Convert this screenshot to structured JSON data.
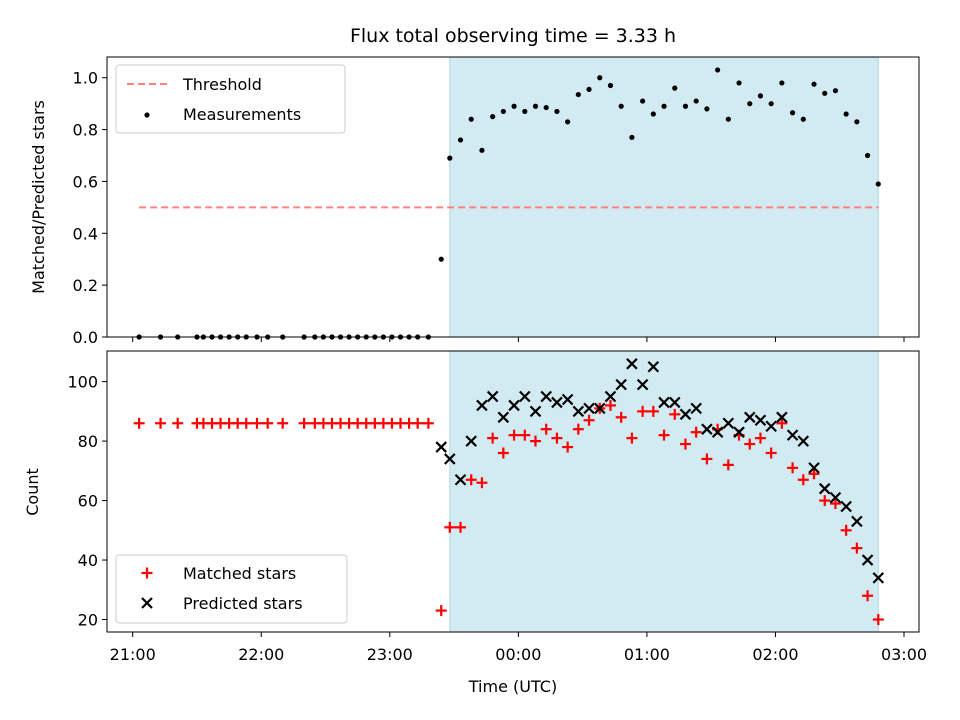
{
  "chart_data": {
    "type": "scatter",
    "title": "Flux total observing time = 3.33 h",
    "xlabel": "Time (UTC)",
    "x_ticks": [
      "21:00",
      "22:00",
      "23:00",
      "00:00",
      "01:00",
      "02:00",
      "03:00"
    ],
    "x_range": [
      "20:48",
      "03:07"
    ],
    "shaded_interval": [
      "23:28",
      "02:48"
    ],
    "shade_color": "#add8e6",
    "panels": [
      {
        "id": "ratio",
        "ylabel": "Matched/Predicted stars",
        "ylim": [
          0,
          1.08
        ],
        "y_ticks": [
          "0.0",
          "0.2",
          "0.4",
          "0.6",
          "0.8",
          "1.0"
        ],
        "legend_position": "upper-left",
        "series": [
          {
            "name": "Threshold",
            "kind": "dashed-line",
            "color": "#ff8080",
            "x": [
              "21:03",
              "02:48"
            ],
            "y": [
              0.5,
              0.5
            ]
          },
          {
            "name": "Measurements",
            "kind": "dots",
            "color": "#000000",
            "x": [
              "21:03",
              "21:13",
              "21:21",
              "21:30",
              "21:33",
              "21:37",
              "21:41",
              "21:45",
              "21:49",
              "21:53",
              "21:58",
              "22:03",
              "22:10",
              "22:20",
              "22:25",
              "22:29",
              "22:33",
              "22:37",
              "22:41",
              "22:45",
              "22:49",
              "22:53",
              "22:57",
              "23:01",
              "23:05",
              "23:09",
              "23:13",
              "23:18",
              "23:24",
              "23:28",
              "23:33",
              "23:38",
              "23:43",
              "23:48",
              "23:53",
              "23:58",
              "00:03",
              "00:08",
              "00:13",
              "00:18",
              "00:23",
              "00:28",
              "00:33",
              "00:38",
              "00:43",
              "00:48",
              "00:53",
              "00:58",
              "01:03",
              "01:08",
              "01:13",
              "01:18",
              "01:23",
              "01:28",
              "01:33",
              "01:38",
              "01:43",
              "01:48",
              "01:53",
              "01:58",
              "02:03",
              "02:08",
              "02:13",
              "02:18",
              "02:23",
              "02:28",
              "02:33",
              "02:38",
              "02:43",
              "02:48"
            ],
            "y": [
              0,
              0,
              0,
              0,
              0,
              0,
              0,
              0,
              0,
              0,
              0,
              0,
              0,
              0,
              0,
              0,
              0,
              0,
              0,
              0,
              0,
              0,
              0,
              0,
              0,
              0,
              0,
              0,
              0.3,
              0.69,
              0.76,
              0.84,
              0.72,
              0.85,
              0.87,
              0.89,
              0.87,
              0.89,
              0.885,
              0.87,
              0.83,
              0.935,
              0.955,
              1.0,
              0.97,
              0.89,
              0.77,
              0.91,
              0.86,
              0.89,
              0.96,
              0.89,
              0.91,
              0.88,
              1.03,
              0.84,
              0.98,
              0.9,
              0.93,
              0.9,
              0.98,
              0.865,
              0.84,
              0.975,
              0.94,
              0.95,
              0.86,
              0.83,
              0.7,
              0.59
            ]
          }
        ]
      },
      {
        "id": "counts",
        "ylabel": "Count",
        "ylim": [
          15.8,
          110.3
        ],
        "y_ticks": [
          "20",
          "40",
          "60",
          "80",
          "100"
        ],
        "legend_position": "lower-left",
        "series": [
          {
            "name": "Matched stars",
            "kind": "plus",
            "color": "#ff0000",
            "x": [
              "21:03",
              "21:13",
              "21:21",
              "21:30",
              "21:33",
              "21:37",
              "21:41",
              "21:45",
              "21:49",
              "21:53",
              "21:58",
              "22:03",
              "22:10",
              "22:20",
              "22:25",
              "22:29",
              "22:33",
              "22:37",
              "22:41",
              "22:45",
              "22:49",
              "22:53",
              "22:57",
              "23:01",
              "23:05",
              "23:09",
              "23:13",
              "23:18",
              "23:24",
              "23:28",
              "23:33",
              "23:38",
              "23:43",
              "23:48",
              "23:53",
              "23:58",
              "00:03",
              "00:08",
              "00:13",
              "00:18",
              "00:23",
              "00:28",
              "00:33",
              "00:38",
              "00:43",
              "00:48",
              "00:53",
              "00:58",
              "01:03",
              "01:08",
              "01:13",
              "01:18",
              "01:23",
              "01:28",
              "01:33",
              "01:38",
              "01:43",
              "01:48",
              "01:53",
              "01:58",
              "02:03",
              "02:08",
              "02:13",
              "02:18",
              "02:23",
              "02:28",
              "02:33",
              "02:38",
              "02:43",
              "02:48"
            ],
            "y": [
              86,
              86,
              86,
              86,
              86,
              86,
              86,
              86,
              86,
              86,
              86,
              86,
              86,
              86,
              86,
              86,
              86,
              86,
              86,
              86,
              86,
              86,
              86,
              86,
              86,
              86,
              86,
              86,
              23,
              51,
              51,
              67,
              66,
              81,
              76,
              82,
              82,
              80,
              84,
              81,
              78,
              84,
              87,
              91,
              92,
              88,
              81,
              90,
              90,
              82,
              89,
              79,
              83,
              74,
              84,
              72,
              82,
              79,
              81,
              76,
              86,
              71,
              67,
              69,
              60,
              59,
              50,
              44,
              28,
              20
            ]
          },
          {
            "name": "Predicted stars",
            "kind": "x",
            "color": "#000000",
            "x": [
              "23:24",
              "23:28",
              "23:33",
              "23:38",
              "23:43",
              "23:48",
              "23:53",
              "23:58",
              "00:03",
              "00:08",
              "00:13",
              "00:18",
              "00:23",
              "00:28",
              "00:33",
              "00:38",
              "00:43",
              "00:48",
              "00:53",
              "00:58",
              "01:03",
              "01:08",
              "01:13",
              "01:18",
              "01:23",
              "01:28",
              "01:33",
              "01:38",
              "01:43",
              "01:48",
              "01:53",
              "01:58",
              "02:03",
              "02:08",
              "02:13",
              "02:18",
              "02:23",
              "02:28",
              "02:33",
              "02:38",
              "02:43",
              "02:48"
            ],
            "y": [
              78,
              74,
              67,
              80,
              92,
              95,
              88,
              92,
              95,
              90,
              95,
              93,
              94,
              90,
              91,
              91,
              95,
              99,
              106,
              99,
              105,
              93,
              93,
              89,
              91,
              84,
              83,
              86,
              83,
              88,
              87,
              85,
              88,
              82,
              80,
              71,
              64,
              61,
              58,
              53,
              40,
              34
            ]
          }
        ]
      }
    ]
  }
}
